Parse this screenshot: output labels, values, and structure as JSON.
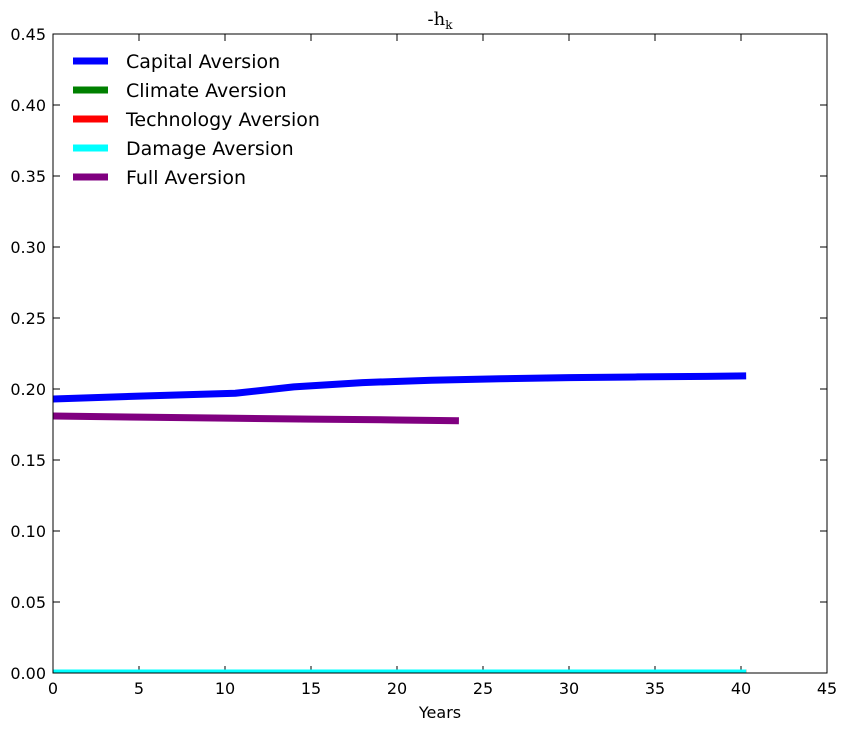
{
  "chart_data": {
    "type": "line",
    "title": "-h",
    "title_subscript": "k",
    "xlabel": "Years",
    "ylabel": "",
    "xlim": [
      0,
      45
    ],
    "ylim": [
      0,
      0.45
    ],
    "xticks": [
      0,
      5,
      10,
      15,
      20,
      25,
      30,
      35,
      40,
      45
    ],
    "yticks": [
      0.0,
      0.05,
      0.1,
      0.15,
      0.2,
      0.25,
      0.3,
      0.35,
      0.4,
      0.45
    ],
    "xtick_labels": [
      "0",
      "5",
      "10",
      "15",
      "20",
      "25",
      "30",
      "35",
      "40",
      "45"
    ],
    "ytick_labels": [
      "0.00",
      "0.05",
      "0.10",
      "0.15",
      "0.20",
      "0.25",
      "0.30",
      "0.35",
      "0.40",
      "0.45"
    ],
    "grid": false,
    "legend_position": "top-left",
    "series": [
      {
        "name": "Capital Aversion",
        "color": "#0000ff",
        "x": [
          0,
          5,
          10.6,
          14,
          18,
          22,
          26,
          30,
          34,
          38,
          40.3
        ],
        "y": [
          0.193,
          0.195,
          0.197,
          0.2015,
          0.2045,
          0.2062,
          0.2072,
          0.208,
          0.2085,
          0.2089,
          0.2092
        ]
      },
      {
        "name": "Climate Aversion",
        "color": "#008000",
        "x": [
          0,
          40.3
        ],
        "y": [
          0,
          0
        ]
      },
      {
        "name": "Technology Aversion",
        "color": "#ff0000",
        "x": [
          0,
          40.3
        ],
        "y": [
          0,
          0
        ]
      },
      {
        "name": "Damage Aversion",
        "color": "#00ffff",
        "x": [
          0,
          40.3
        ],
        "y": [
          0,
          0
        ]
      },
      {
        "name": "Full Aversion",
        "color": "#800080",
        "x": [
          0,
          5,
          10,
          15,
          20,
          23.6
        ],
        "y": [
          0.181,
          0.1802,
          0.1795,
          0.1788,
          0.1782,
          0.1776
        ]
      }
    ]
  }
}
